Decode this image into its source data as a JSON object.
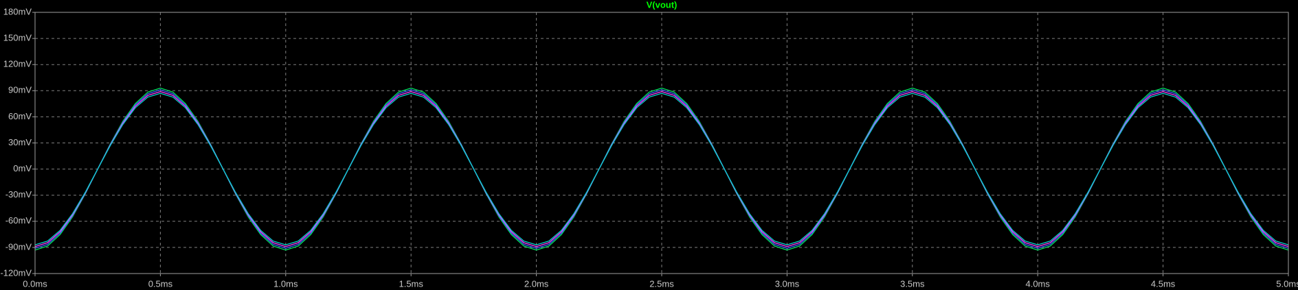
{
  "chart_data": {
    "type": "line",
    "title": "V(vout)",
    "title_color": "#00ff00",
    "x": [
      0,
      0.05,
      0.1,
      0.15,
      0.2,
      0.25,
      0.3,
      0.35,
      0.4,
      0.45,
      0.5,
      0.55,
      0.6,
      0.65,
      0.7,
      0.75,
      0.8,
      0.85,
      0.9,
      0.95,
      1,
      1.05,
      1.1,
      1.15,
      1.2,
      1.25,
      1.3,
      1.35,
      1.4,
      1.45,
      1.5,
      1.55,
      1.6,
      1.65,
      1.7,
      1.75,
      1.8,
      1.85,
      1.9,
      1.95,
      2,
      2.05,
      2.1,
      2.15,
      2.2,
      2.25,
      2.3,
      2.35,
      2.4,
      2.45,
      2.5,
      2.55,
      2.6,
      2.65,
      2.7,
      2.75,
      2.8,
      2.85,
      2.9,
      2.95,
      3,
      3.05,
      3.1,
      3.15,
      3.2,
      3.25,
      3.3,
      3.35,
      3.4,
      3.45,
      3.5,
      3.55,
      3.6,
      3.65,
      3.7,
      3.75,
      3.8,
      3.85,
      3.9,
      3.95,
      4,
      4.05,
      4.1,
      4.15,
      4.2,
      4.25,
      4.3,
      4.35,
      4.4,
      4.45,
      4.5,
      4.55,
      4.6,
      4.65,
      4.7,
      4.75,
      4.8,
      4.85,
      4.9,
      4.95,
      5
    ],
    "series": [
      {
        "color": "#00e060",
        "values": [
          -93,
          -88.4,
          -75.2,
          -54.7,
          -28.7,
          0,
          28.7,
          54.7,
          75.2,
          88.4,
          93,
          88.4,
          75.2,
          54.7,
          28.7,
          0,
          -28.7,
          -54.7,
          -75.2,
          -88.4,
          -93,
          -88.4,
          -75.2,
          -54.7,
          -28.7,
          0,
          28.7,
          54.7,
          75.2,
          88.4,
          93,
          88.4,
          75.2,
          54.7,
          28.7,
          0,
          -28.7,
          -54.7,
          -75.2,
          -88.4,
          -93,
          -88.4,
          -75.2,
          -54.7,
          -28.7,
          0,
          28.7,
          54.7,
          75.2,
          88.4,
          93,
          88.4,
          75.2,
          54.7,
          28.7,
          0,
          -28.7,
          -54.7,
          -75.2,
          -88.4,
          -93,
          -88.4,
          -75.2,
          -54.7,
          -28.7,
          0,
          28.7,
          54.7,
          75.2,
          88.4,
          93,
          88.4,
          75.2,
          54.7,
          28.7,
          0,
          -28.7,
          -54.7,
          -75.2,
          -88.4,
          -93,
          -88.4,
          -75.2,
          -54.7,
          -28.7,
          0,
          28.7,
          54.7,
          75.2,
          88.4,
          93,
          88.4,
          75.2,
          54.7,
          28.7,
          0,
          -28.7,
          -54.7,
          -75.2,
          -88.4,
          -93
        ]
      },
      {
        "color": "#4060ff",
        "values": [
          -91,
          -86.5,
          -73.6,
          -53.5,
          -28.1,
          0,
          28.1,
          53.5,
          73.6,
          86.5,
          91,
          86.5,
          73.6,
          53.5,
          28.1,
          0,
          -28.1,
          -53.5,
          -73.6,
          -86.5,
          -91,
          -86.5,
          -73.6,
          -53.5,
          -28.1,
          0,
          28.1,
          53.5,
          73.6,
          86.5,
          91,
          86.5,
          73.6,
          53.5,
          28.1,
          0,
          -28.1,
          -53.5,
          -73.6,
          -86.5,
          -91,
          -86.5,
          -73.6,
          -53.5,
          -28.1,
          0,
          28.1,
          53.5,
          73.6,
          86.5,
          91,
          86.5,
          73.6,
          53.5,
          28.1,
          0,
          -28.1,
          -53.5,
          -73.6,
          -86.5,
          -91,
          -86.5,
          -73.6,
          -53.5,
          -28.1,
          0,
          28.1,
          53.5,
          73.6,
          86.5,
          91,
          86.5,
          73.6,
          53.5,
          28.1,
          0,
          -28.1,
          -53.5,
          -73.6,
          -86.5,
          -91,
          -86.5,
          -73.6,
          -53.5,
          -28.1,
          0,
          28.1,
          53.5,
          73.6,
          86.5,
          91,
          86.5,
          73.6,
          53.5,
          28.1,
          0,
          -28.1,
          -53.5,
          -73.6,
          -86.5,
          -91
        ]
      },
      {
        "color": "#ff40ff",
        "values": [
          -89,
          -84.6,
          -72,
          -52.3,
          -27.5,
          0,
          27.5,
          52.3,
          72,
          84.6,
          89,
          84.6,
          72,
          52.3,
          27.5,
          0,
          -27.5,
          -52.3,
          -72,
          -84.6,
          -89,
          -84.6,
          -72,
          -52.3,
          -27.5,
          0,
          27.5,
          52.3,
          72,
          84.6,
          89,
          84.6,
          72,
          52.3,
          27.5,
          0,
          -27.5,
          -52.3,
          -72,
          -84.6,
          -89,
          -84.6,
          -72,
          -52.3,
          -27.5,
          0,
          27.5,
          52.3,
          72,
          84.6,
          89,
          84.6,
          72,
          52.3,
          27.5,
          0,
          -27.5,
          -52.3,
          -72,
          -84.6,
          -89,
          -84.6,
          -72,
          -52.3,
          -27.5,
          0,
          27.5,
          52.3,
          72,
          84.6,
          89,
          84.6,
          72,
          52.3,
          27.5,
          0,
          -27.5,
          -52.3,
          -72,
          -84.6,
          -89,
          -84.6,
          -72,
          -52.3,
          -27.5,
          0,
          27.5,
          52.3,
          72,
          84.6,
          89,
          84.6,
          72,
          52.3,
          27.5,
          0,
          -27.5,
          -52.3,
          -72,
          -84.6,
          -89
        ]
      },
      {
        "color": "#00d0d0",
        "values": [
          -87,
          -82.7,
          -70.4,
          -51.1,
          -26.9,
          0,
          26.9,
          51.1,
          70.4,
          82.7,
          87,
          82.7,
          70.4,
          51.1,
          26.9,
          0,
          -26.9,
          -51.1,
          -70.4,
          -82.7,
          -87,
          -82.7,
          -70.4,
          -51.1,
          -26.9,
          0,
          26.9,
          51.1,
          70.4,
          82.7,
          87,
          82.7,
          70.4,
          51.1,
          26.9,
          0,
          -26.9,
          -51.1,
          -70.4,
          -82.7,
          -87,
          -82.7,
          -70.4,
          -51.1,
          -26.9,
          0,
          26.9,
          51.1,
          70.4,
          82.7,
          87,
          82.7,
          70.4,
          51.1,
          26.9,
          0,
          -26.9,
          -51.1,
          -70.4,
          -82.7,
          -87,
          -82.7,
          -70.4,
          -51.1,
          -26.9,
          0,
          26.9,
          51.1,
          70.4,
          82.7,
          87,
          82.7,
          70.4,
          51.1,
          26.9,
          0,
          -26.9,
          -51.1,
          -70.4,
          -82.7,
          -87,
          -82.7,
          -70.4,
          -51.1,
          -26.9,
          0,
          26.9,
          51.1,
          70.4,
          82.7,
          87,
          82.7,
          70.4,
          51.1,
          26.9,
          0,
          -26.9,
          -51.1,
          -70.4,
          -82.7,
          -87
        ]
      }
    ],
    "xlim": [
      0,
      5
    ],
    "ylim": [
      -120,
      180
    ],
    "xticks": [
      {
        "value": 0,
        "label": "0.0ms"
      },
      {
        "value": 0.5,
        "label": "0.5ms"
      },
      {
        "value": 1,
        "label": "1.0ms"
      },
      {
        "value": 1.5,
        "label": "1.5ms"
      },
      {
        "value": 2,
        "label": "2.0ms"
      },
      {
        "value": 2.5,
        "label": "2.5ms"
      },
      {
        "value": 3,
        "label": "3.0ms"
      },
      {
        "value": 3.5,
        "label": "3.5ms"
      },
      {
        "value": 4,
        "label": "4.0ms"
      },
      {
        "value": 4.5,
        "label": "4.5ms"
      },
      {
        "value": 5,
        "label": "5.0ms"
      }
    ],
    "yticks": [
      {
        "value": -120,
        "label": "-120mV"
      },
      {
        "value": -90,
        "label": "-90mV"
      },
      {
        "value": -60,
        "label": "-60mV"
      },
      {
        "value": -30,
        "label": "-30mV"
      },
      {
        "value": 0,
        "label": "0mV"
      },
      {
        "value": 30,
        "label": "30mV"
      },
      {
        "value": 60,
        "label": "60mV"
      },
      {
        "value": 90,
        "label": "90mV"
      },
      {
        "value": 120,
        "label": "120mV"
      },
      {
        "value": 150,
        "label": "150mV"
      },
      {
        "value": 180,
        "label": "180mV"
      }
    ],
    "grid": true
  }
}
